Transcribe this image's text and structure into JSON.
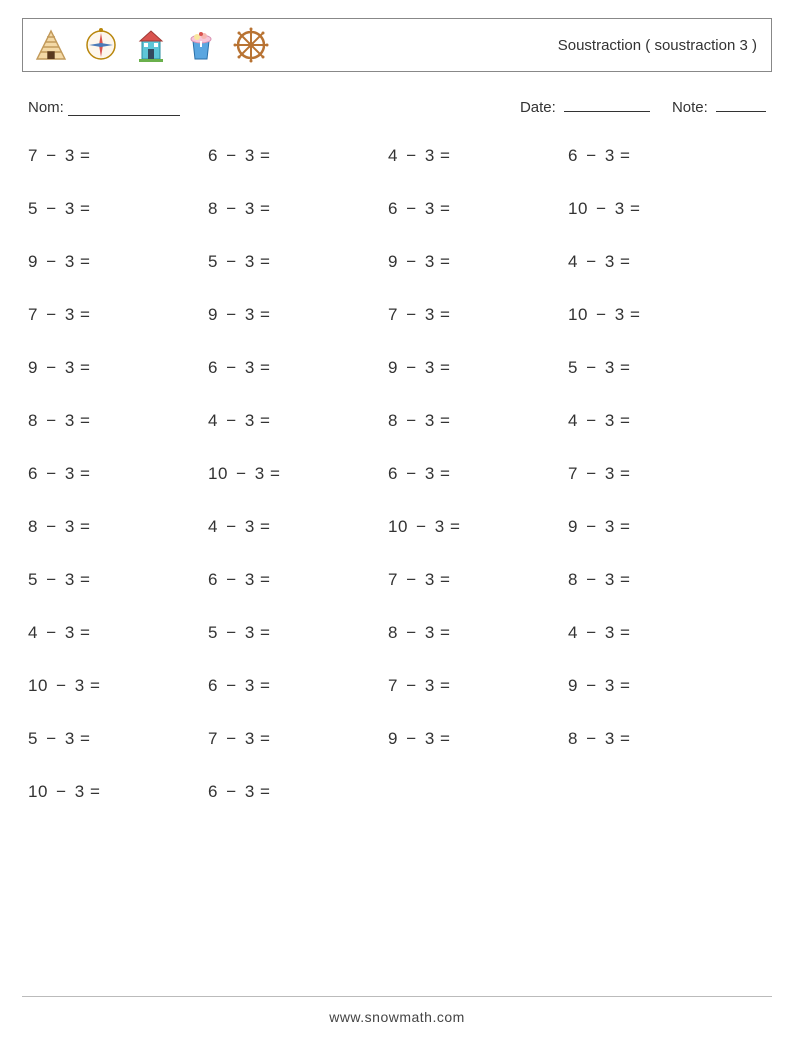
{
  "header": {
    "title": "Soustraction ( soustraction 3 )",
    "icons": [
      "pyramid-icon",
      "compass-icon",
      "house-icon",
      "cup-icon",
      "wheel-icon"
    ]
  },
  "meta": {
    "name_label": "Nom:",
    "date_label": "Date:",
    "note_label": "Note:",
    "name_blank_width": 112,
    "date_blank_width": 86,
    "note_blank_width": 50
  },
  "operator": "−",
  "problems": [
    [
      {
        "a": 7,
        "b": 3
      },
      {
        "a": 6,
        "b": 3
      },
      {
        "a": 4,
        "b": 3
      },
      {
        "a": 6,
        "b": 3
      }
    ],
    [
      {
        "a": 5,
        "b": 3
      },
      {
        "a": 8,
        "b": 3
      },
      {
        "a": 6,
        "b": 3
      },
      {
        "a": 10,
        "b": 3
      }
    ],
    [
      {
        "a": 9,
        "b": 3
      },
      {
        "a": 5,
        "b": 3
      },
      {
        "a": 9,
        "b": 3
      },
      {
        "a": 4,
        "b": 3
      }
    ],
    [
      {
        "a": 7,
        "b": 3
      },
      {
        "a": 9,
        "b": 3
      },
      {
        "a": 7,
        "b": 3
      },
      {
        "a": 10,
        "b": 3
      }
    ],
    [
      {
        "a": 9,
        "b": 3
      },
      {
        "a": 6,
        "b": 3
      },
      {
        "a": 9,
        "b": 3
      },
      {
        "a": 5,
        "b": 3
      }
    ],
    [
      {
        "a": 8,
        "b": 3
      },
      {
        "a": 4,
        "b": 3
      },
      {
        "a": 8,
        "b": 3
      },
      {
        "a": 4,
        "b": 3
      }
    ],
    [
      {
        "a": 6,
        "b": 3
      },
      {
        "a": 10,
        "b": 3
      },
      {
        "a": 6,
        "b": 3
      },
      {
        "a": 7,
        "b": 3
      }
    ],
    [
      {
        "a": 8,
        "b": 3
      },
      {
        "a": 4,
        "b": 3
      },
      {
        "a": 10,
        "b": 3
      },
      {
        "a": 9,
        "b": 3
      }
    ],
    [
      {
        "a": 5,
        "b": 3
      },
      {
        "a": 6,
        "b": 3
      },
      {
        "a": 7,
        "b": 3
      },
      {
        "a": 8,
        "b": 3
      }
    ],
    [
      {
        "a": 4,
        "b": 3
      },
      {
        "a": 5,
        "b": 3
      },
      {
        "a": 8,
        "b": 3
      },
      {
        "a": 4,
        "b": 3
      }
    ],
    [
      {
        "a": 10,
        "b": 3
      },
      {
        "a": 6,
        "b": 3
      },
      {
        "a": 7,
        "b": 3
      },
      {
        "a": 9,
        "b": 3
      }
    ],
    [
      {
        "a": 5,
        "b": 3
      },
      {
        "a": 7,
        "b": 3
      },
      {
        "a": 9,
        "b": 3
      },
      {
        "a": 8,
        "b": 3
      }
    ],
    [
      {
        "a": 10,
        "b": 3
      },
      {
        "a": 6,
        "b": 3
      }
    ]
  ],
  "footer": {
    "url": "www.snowmath.com"
  },
  "colors": {
    "text": "#333333",
    "border": "#888888",
    "footer_line": "#bbbbbb",
    "background": "#ffffff"
  },
  "typography": {
    "title_fontsize": 15,
    "meta_fontsize": 15,
    "problem_fontsize": 17,
    "footer_fontsize": 14
  }
}
